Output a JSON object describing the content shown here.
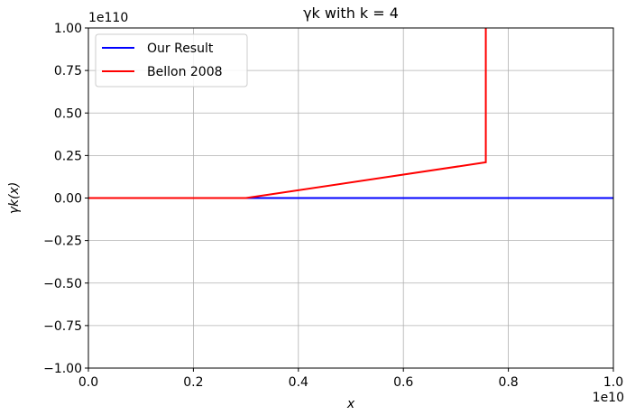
{
  "chart_data": {
    "type": "line",
    "title": "γk with k = 4",
    "xlabel": "x",
    "ylabel": "γk(x)",
    "x_offset_label": "1e10",
    "y_offset_label": "1e110",
    "xlim": [
      0,
      1.0
    ],
    "ylim": [
      -1.0,
      1.0
    ],
    "x_ticks": [
      "0.0",
      "0.2",
      "0.4",
      "0.6",
      "0.8",
      "1.0"
    ],
    "x_tick_values": [
      0.0,
      0.2,
      0.4,
      0.6,
      0.8,
      1.0
    ],
    "y_ticks": [
      "−1.00",
      "−0.75",
      "−0.50",
      "−0.25",
      "0.00",
      "0.25",
      "0.50",
      "0.75",
      "1.00"
    ],
    "y_tick_values": [
      -1.0,
      -0.75,
      -0.5,
      -0.25,
      0.0,
      0.25,
      0.5,
      0.75,
      1.0
    ],
    "grid": true,
    "legend_position": "top-left",
    "series": [
      {
        "name": "Our Result",
        "color": "#0000ff",
        "points": [
          [
            0.0,
            0.0
          ],
          [
            1.0,
            0.0
          ]
        ]
      },
      {
        "name": "Bellon 2008",
        "color": "#ff0000",
        "points": [
          [
            0.0,
            0.0
          ],
          [
            0.3,
            0.0
          ],
          [
            0.757,
            0.21
          ],
          [
            0.757,
            1.0
          ]
        ]
      }
    ]
  }
}
